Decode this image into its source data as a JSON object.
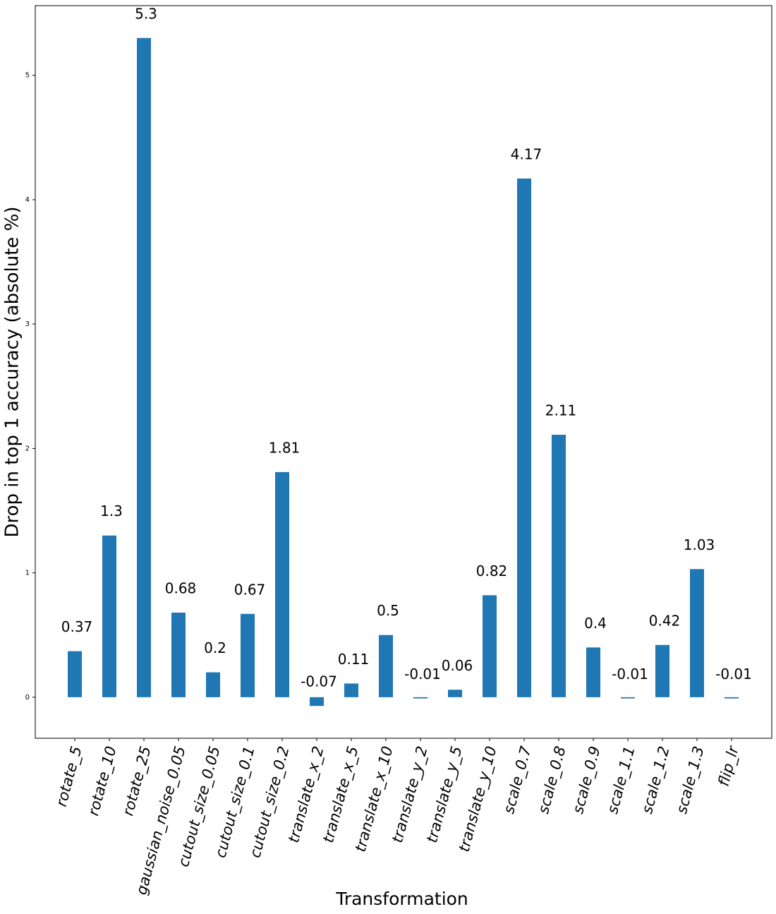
{
  "chart_data": {
    "type": "bar",
    "x_label": "Transformation",
    "y_label": "Drop in top 1 accuracy (absolute %)",
    "categories": [
      "rotate_5",
      "rotate_10",
      "rotate_25",
      "gaussian_noise_0.05",
      "cutout_size_0.05",
      "cutout_size_0.1",
      "cutout_size_0.2",
      "translate_x_2",
      "translate_x_5",
      "translate_x_10",
      "translate_y_2",
      "translate_y_5",
      "translate_y_10",
      "scale_0.7",
      "scale_0.8",
      "scale_0.9",
      "scale_1.1",
      "scale_1.2",
      "scale_1.3",
      "flip_lr"
    ],
    "values": [
      0.37,
      1.3,
      5.3,
      0.68,
      0.2,
      0.67,
      1.81,
      -0.07,
      0.11,
      0.5,
      -0.01,
      0.06,
      0.82,
      4.17,
      2.11,
      0.4,
      -0.01,
      0.42,
      1.03,
      -0.01
    ],
    "color": "#1f77b4",
    "ylim": [
      -0.33,
      5.56
    ],
    "yticks": [
      0,
      1,
      2,
      3,
      4,
      5
    ],
    "grid": false
  }
}
